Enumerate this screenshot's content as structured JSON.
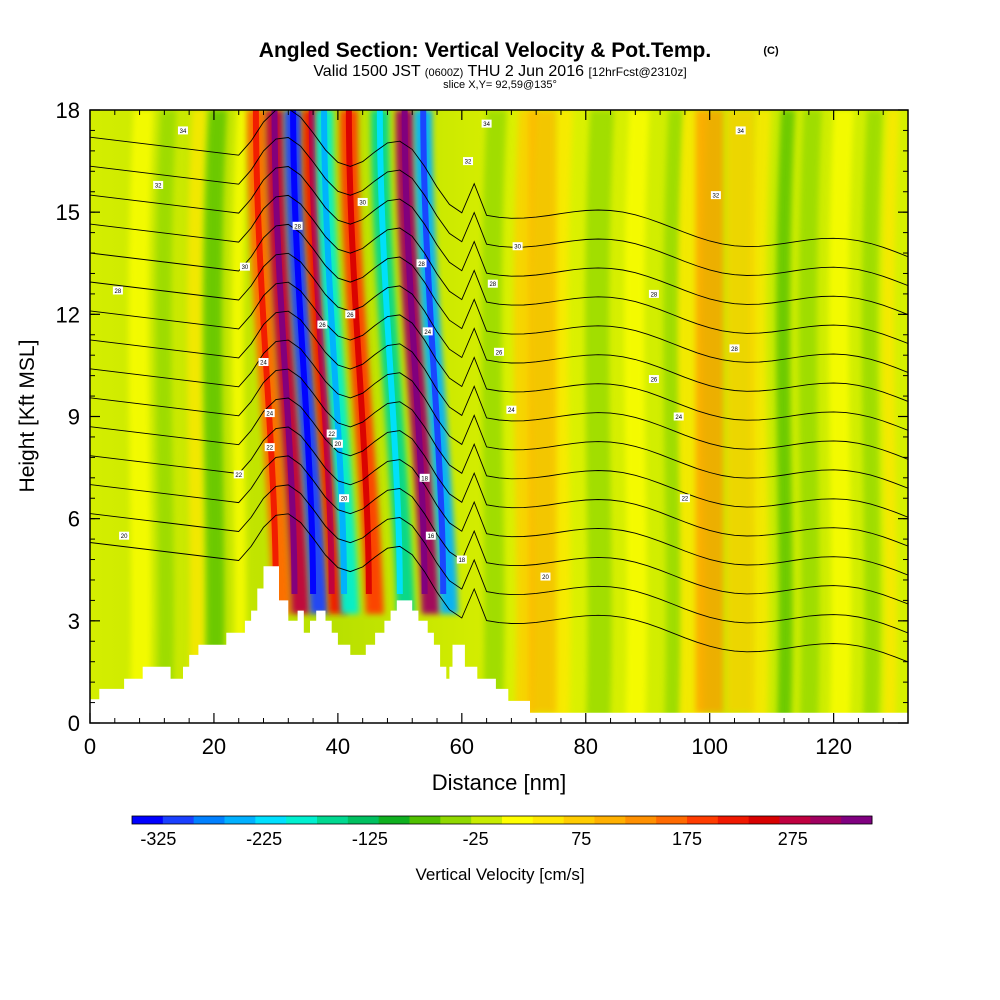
{
  "chart_data": {
    "type": "heatmap",
    "title": "Angled Section: Vertical Velocity & Pot.Temp.",
    "title_mark": "(C)",
    "subtitle": {
      "valid": "Valid 1500 JST",
      "zulu": "(0600Z)",
      "date": "THU 2 Jun 2016",
      "forecast": "[12hrFcst@2310z]"
    },
    "slice_label": "slice X,Y= 92,59@135°",
    "xlabel": "Distance [nm]",
    "ylabel": "Height [Kft MSL]",
    "xlim": [
      0,
      132
    ],
    "ylim": [
      0,
      18
    ],
    "x_ticks": [
      0,
      20,
      40,
      60,
      80,
      100,
      120
    ],
    "y_ticks": [
      0,
      3,
      6,
      9,
      12,
      15,
      18
    ],
    "colorbar": {
      "label": "Vertical Velocity [cm/s]",
      "tick_values": [
        -325,
        -225,
        -125,
        -25,
        75,
        175,
        275
      ],
      "tick_labels": [
        "-325",
        "-225",
        "-125",
        "-25",
        "75",
        "175",
        "275"
      ],
      "colors": [
        "#0000ff",
        "#1a40ff",
        "#0080ff",
        "#00b0ff",
        "#00e0ff",
        "#00f0d0",
        "#00d890",
        "#00c060",
        "#10b020",
        "#50c000",
        "#90d800",
        "#c8ec00",
        "#ffff00",
        "#ffe800",
        "#ffcc00",
        "#ffb000",
        "#ff9000",
        "#ff6a00",
        "#ff3c00",
        "#f01800",
        "#d80000",
        "#c00040",
        "#a00060",
        "#800080"
      ]
    },
    "vertical_velocity_features": [
      {
        "x": 30,
        "value": 150
      },
      {
        "x": 33,
        "value": 280
      },
      {
        "x": 36,
        "value": -300
      },
      {
        "x": 39,
        "value": 220
      },
      {
        "x": 41,
        "value": -200
      },
      {
        "x": 45,
        "value": 200
      },
      {
        "x": 50,
        "value": -150
      },
      {
        "x": 54,
        "value": 300
      },
      {
        "x": 57,
        "value": -250
      },
      {
        "x": 73,
        "value": 100
      },
      {
        "x": 100,
        "value": 120
      },
      {
        "x": 105,
        "value": 80
      }
    ],
    "terrain": [
      [
        0,
        0.7
      ],
      [
        1.5,
        0.7
      ],
      [
        1.5,
        1.0
      ],
      [
        5.5,
        1.0
      ],
      [
        5.5,
        1.3
      ],
      [
        8.5,
        1.3
      ],
      [
        8.5,
        1.65
      ],
      [
        13,
        1.65
      ],
      [
        13,
        1.3
      ],
      [
        15,
        1.3
      ],
      [
        15,
        1.65
      ],
      [
        16,
        1.65
      ],
      [
        16,
        2.0
      ],
      [
        17.5,
        2.0
      ],
      [
        17.5,
        2.3
      ],
      [
        22,
        2.3
      ],
      [
        22,
        2.65
      ],
      [
        25,
        2.65
      ],
      [
        25,
        3.0
      ],
      [
        26,
        3.0
      ],
      [
        26,
        3.3
      ],
      [
        27,
        3.3
      ],
      [
        27,
        3.95
      ],
      [
        28,
        3.95
      ],
      [
        28,
        4.6
      ],
      [
        30.5,
        4.6
      ],
      [
        30.5,
        3.6
      ],
      [
        32,
        3.6
      ],
      [
        32,
        3.0
      ],
      [
        33.5,
        3.0
      ],
      [
        33.5,
        3.3
      ],
      [
        34.5,
        3.3
      ],
      [
        34.5,
        2.65
      ],
      [
        35.5,
        2.65
      ],
      [
        35.5,
        3.0
      ],
      [
        36.5,
        3.0
      ],
      [
        36.5,
        3.3
      ],
      [
        38,
        3.3
      ],
      [
        38,
        3.0
      ],
      [
        39,
        3.0
      ],
      [
        39,
        2.65
      ],
      [
        40,
        2.65
      ],
      [
        40,
        2.3
      ],
      [
        42,
        2.3
      ],
      [
        42,
        2.0
      ],
      [
        44.5,
        2.0
      ],
      [
        44.5,
        2.3
      ],
      [
        46,
        2.3
      ],
      [
        46,
        2.65
      ],
      [
        47.5,
        2.65
      ],
      [
        47.5,
        3.0
      ],
      [
        48.5,
        3.0
      ],
      [
        48.5,
        3.3
      ],
      [
        49.5,
        3.3
      ],
      [
        49.5,
        3.6
      ],
      [
        52,
        3.6
      ],
      [
        52,
        3.3
      ],
      [
        53,
        3.3
      ],
      [
        53,
        3.0
      ],
      [
        54.5,
        3.0
      ],
      [
        54.5,
        2.65
      ],
      [
        55.5,
        2.65
      ],
      [
        55.5,
        2.3
      ],
      [
        56.5,
        2.3
      ],
      [
        56.5,
        1.65
      ],
      [
        57.5,
        1.65
      ],
      [
        57.5,
        1.3
      ],
      [
        58,
        1.3
      ],
      [
        58,
        1.65
      ],
      [
        58.5,
        1.65
      ],
      [
        58.5,
        2.3
      ],
      [
        60.5,
        2.3
      ],
      [
        60.5,
        1.65
      ],
      [
        62.5,
        1.65
      ],
      [
        62.5,
        1.3
      ],
      [
        65.5,
        1.3
      ],
      [
        65.5,
        1.0
      ],
      [
        67.5,
        1.0
      ],
      [
        67.5,
        0.65
      ],
      [
        71,
        0.65
      ],
      [
        71,
        0.3
      ],
      [
        132,
        0.3
      ],
      [
        132,
        0
      ]
    ],
    "contour_labels": [
      {
        "x": 15,
        "y": 17.4,
        "text": "34"
      },
      {
        "x": 11,
        "y": 15.8,
        "text": "32"
      },
      {
        "x": 25,
        "y": 13.4,
        "text": "30"
      },
      {
        "x": 4.5,
        "y": 12.7,
        "text": "28"
      },
      {
        "x": 5.5,
        "y": 5.5,
        "text": "20"
      },
      {
        "x": 24,
        "y": 7.3,
        "text": "22"
      },
      {
        "x": 28,
        "y": 10.6,
        "text": "24"
      },
      {
        "x": 29,
        "y": 9.1,
        "text": "24"
      },
      {
        "x": 29,
        "y": 8.1,
        "text": "22"
      },
      {
        "x": 33.5,
        "y": 14.6,
        "text": "28"
      },
      {
        "x": 37.5,
        "y": 11.7,
        "text": "26"
      },
      {
        "x": 42,
        "y": 12.0,
        "text": "26"
      },
      {
        "x": 39,
        "y": 8.5,
        "text": "22"
      },
      {
        "x": 40,
        "y": 8.2,
        "text": "20"
      },
      {
        "x": 41,
        "y": 6.6,
        "text": "20"
      },
      {
        "x": 44,
        "y": 15.3,
        "text": "30"
      },
      {
        "x": 53.5,
        "y": 13.5,
        "text": "28"
      },
      {
        "x": 54.5,
        "y": 11.5,
        "text": "24"
      },
      {
        "x": 54,
        "y": 7.2,
        "text": "18"
      },
      {
        "x": 55,
        "y": 5.5,
        "text": "16"
      },
      {
        "x": 60,
        "y": 4.8,
        "text": "18"
      },
      {
        "x": 64,
        "y": 17.6,
        "text": "34"
      },
      {
        "x": 61,
        "y": 16.5,
        "text": "32"
      },
      {
        "x": 69,
        "y": 14.0,
        "text": "30"
      },
      {
        "x": 65,
        "y": 12.9,
        "text": "28"
      },
      {
        "x": 66,
        "y": 10.9,
        "text": "26"
      },
      {
        "x": 68,
        "y": 9.2,
        "text": "24"
      },
      {
        "x": 73.5,
        "y": 4.3,
        "text": "20"
      },
      {
        "x": 91,
        "y": 12.6,
        "text": "28"
      },
      {
        "x": 91,
        "y": 10.1,
        "text": "26"
      },
      {
        "x": 95,
        "y": 9.0,
        "text": "24"
      },
      {
        "x": 96,
        "y": 6.6,
        "text": "22"
      },
      {
        "x": 101,
        "y": 15.5,
        "text": "32"
      },
      {
        "x": 104,
        "y": 11.0,
        "text": "28"
      },
      {
        "x": 105,
        "y": 17.4,
        "text": "34"
      }
    ]
  }
}
